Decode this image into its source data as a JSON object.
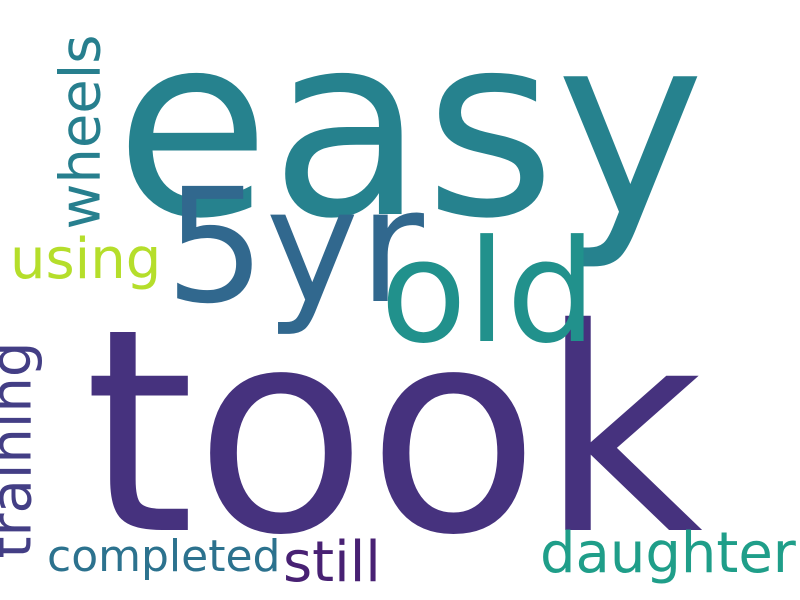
{
  "words": {
    "easy": {
      "text": "easy",
      "color": "#26828e"
    },
    "took": {
      "text": "took",
      "color": "#46327e"
    },
    "yr": {
      "text": "5yr",
      "color": "#31688e"
    },
    "old": {
      "text": "old",
      "color": "#21918c"
    },
    "using": {
      "text": "using",
      "color": "#b5de2b"
    },
    "wheels": {
      "text": "wheels",
      "color": "#277f8e"
    },
    "training": {
      "text": "training",
      "color": "#433e85"
    },
    "completed": {
      "text": "completed",
      "color": "#2c728e"
    },
    "still": {
      "text": "still",
      "color": "#482173"
    },
    "daughter": {
      "text": "daughter",
      "color": "#1f9e89"
    }
  }
}
